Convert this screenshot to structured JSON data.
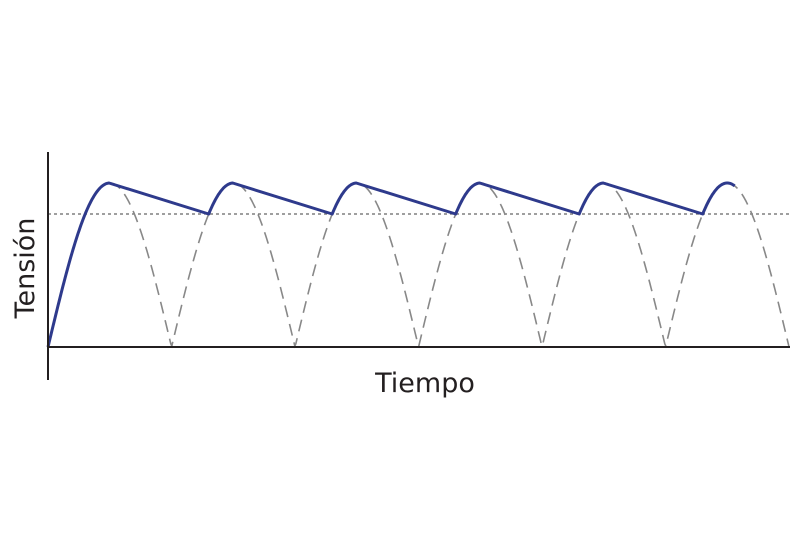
{
  "axes": {
    "y_label": "Tensión",
    "x_label": "Tiempo"
  }
}
